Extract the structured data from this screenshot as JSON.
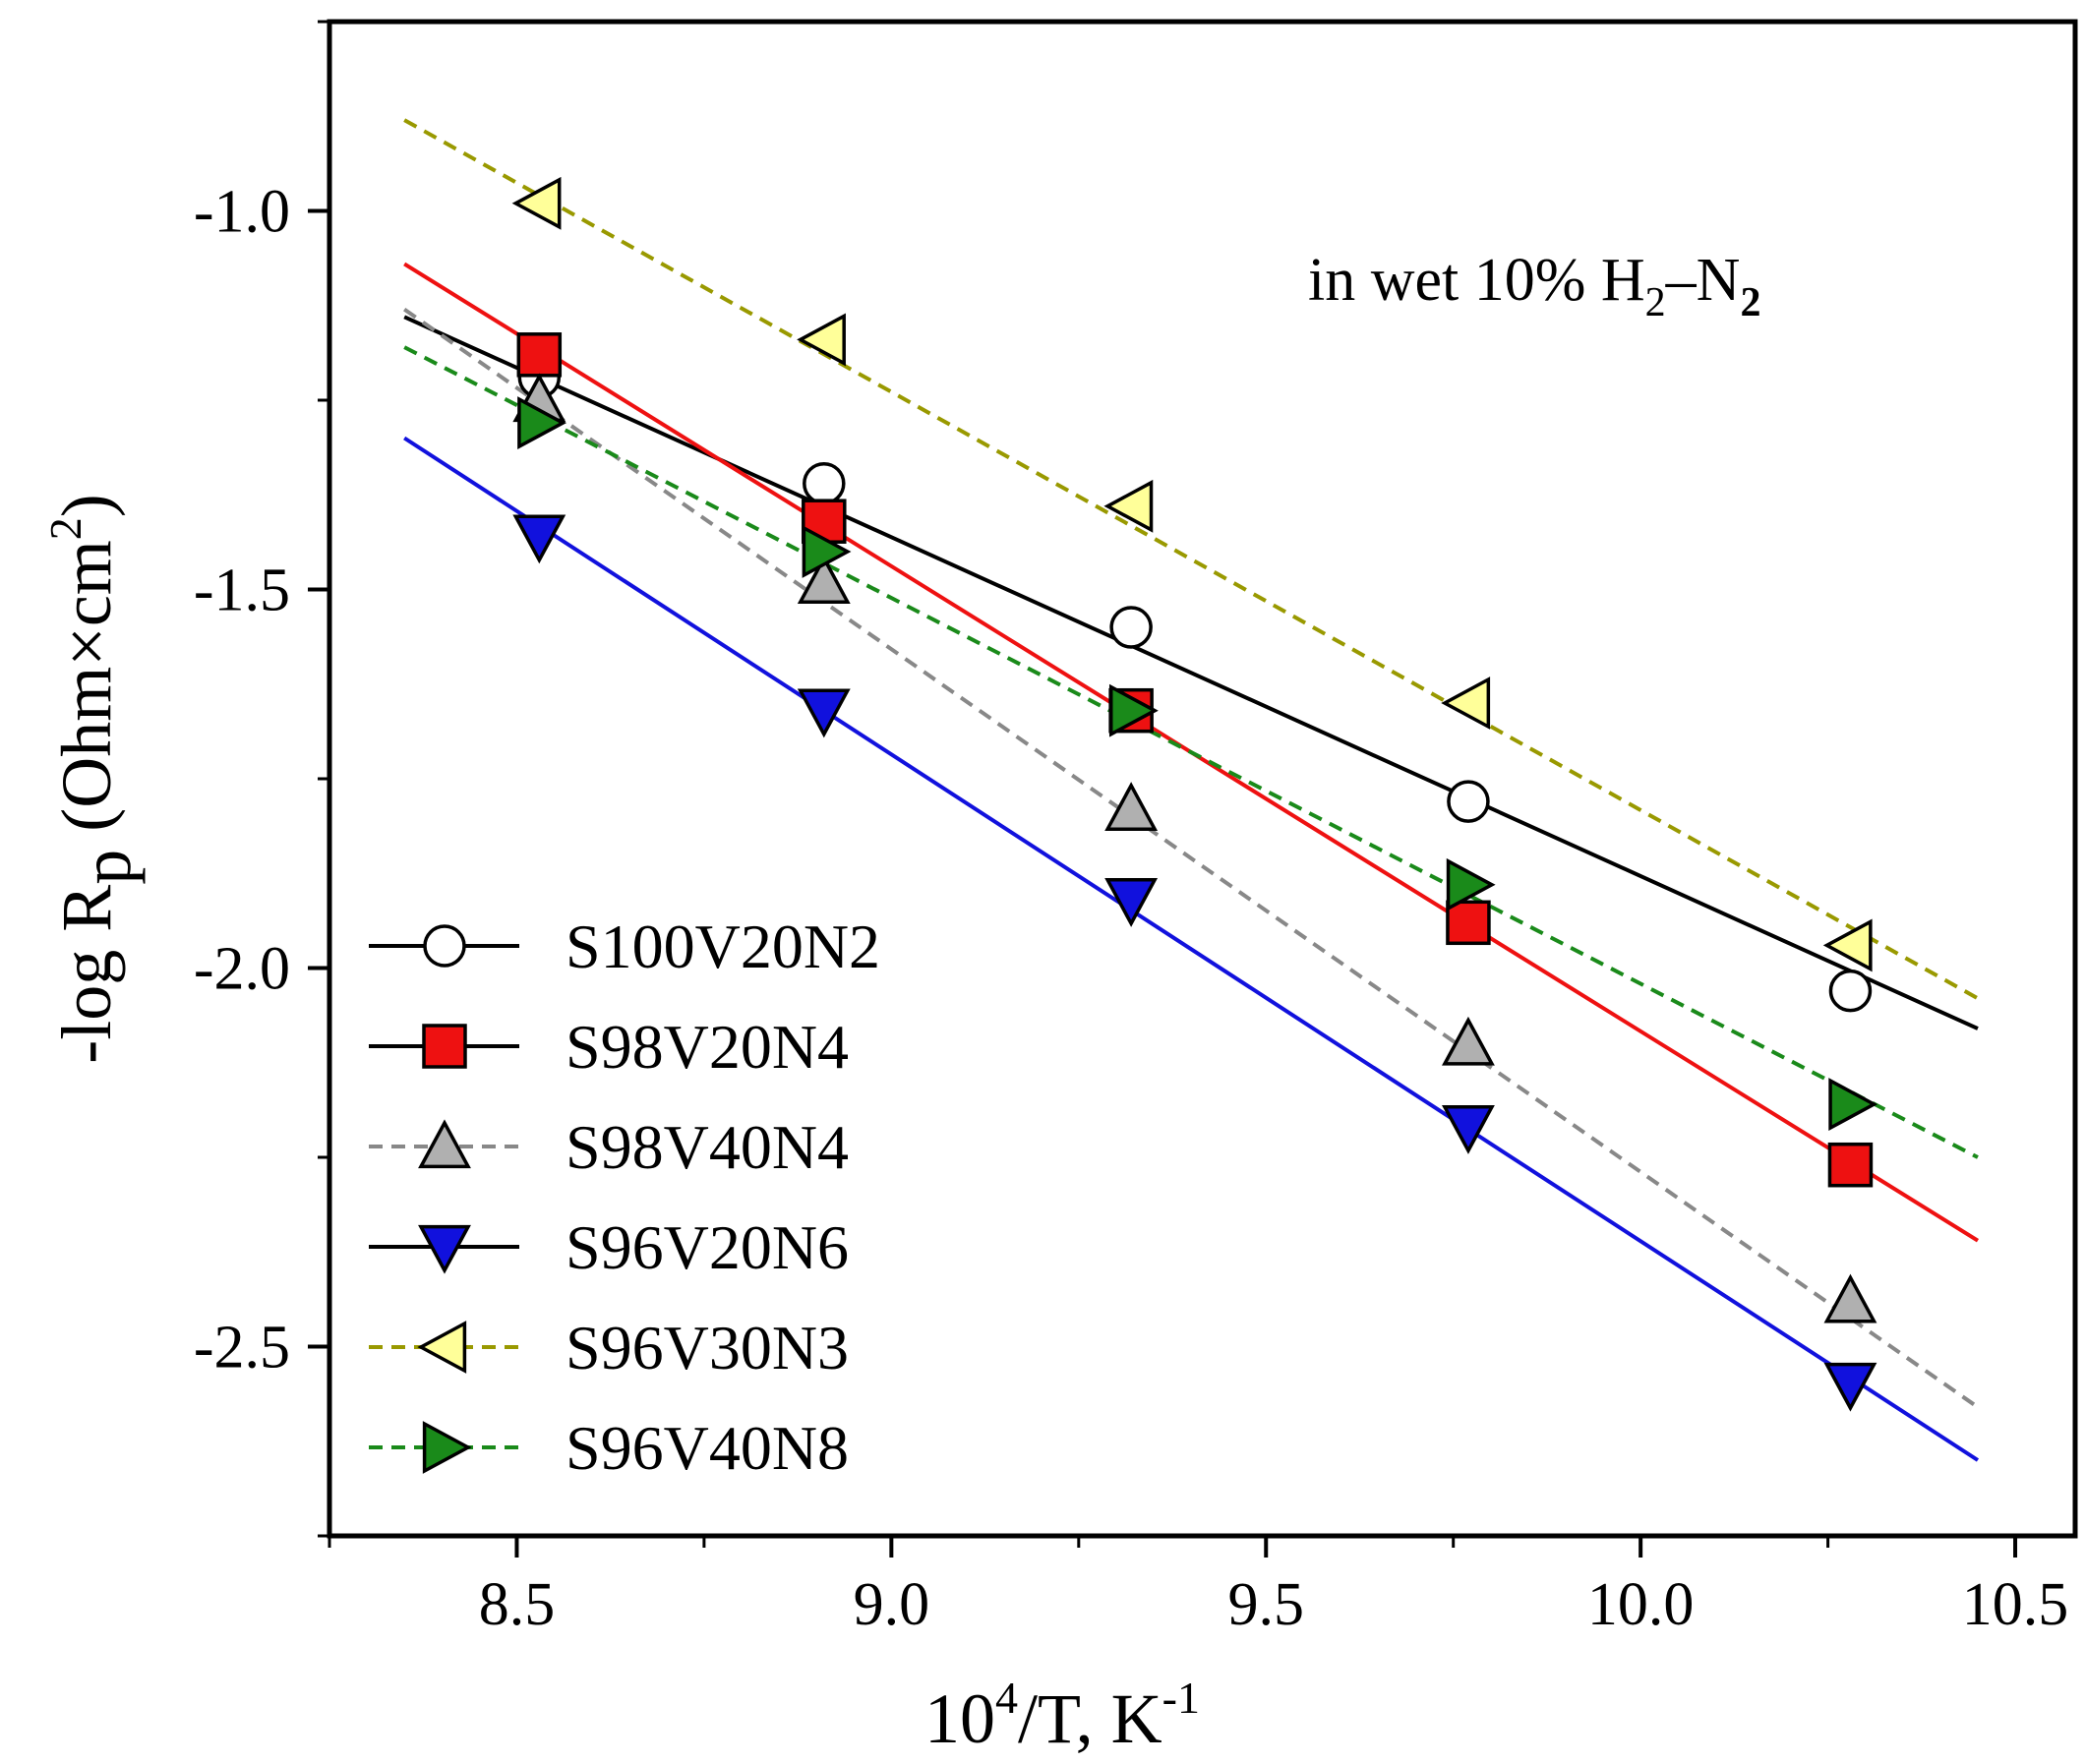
{
  "chart_data": {
    "type": "scatter",
    "title": "",
    "annotation": {
      "prefix": "in wet 10% H",
      "sub1": "2",
      "mid": "–N",
      "sub2": "2"
    },
    "xlabel": {
      "base": "10",
      "sup1": "4",
      "mid": "/T, K",
      "sup2": "-1"
    },
    "ylabel": {
      "main": "-log R",
      "sub": "p",
      "unit": " (Ohm×cm",
      "sup": "2",
      "close": ")"
    },
    "xlim": [
      8.25,
      10.58
    ],
    "ylim": [
      -2.75,
      -0.75
    ],
    "xticks": [
      8.5,
      9.0,
      9.5,
      10.0,
      10.5
    ],
    "xtick_labels": [
      "8.5",
      "9.0",
      "9.5",
      "10.0",
      "10.5"
    ],
    "yticks": [
      -1.0,
      -1.5,
      -2.0,
      -2.5
    ],
    "ytick_labels": [
      "-1.0",
      "-1.5",
      "-2.0",
      "-2.5"
    ],
    "legend_position": "bottom-left",
    "series": [
      {
        "name": "S100V20N2",
        "marker": "circle",
        "fill": "#ffffff",
        "line_color": "#000000",
        "dash": false,
        "x": [
          8.53,
          8.91,
          9.32,
          9.77,
          10.28
        ],
        "y": [
          -1.22,
          -1.36,
          -1.55,
          -1.78,
          -2.03
        ],
        "fit": {
          "x": [
            8.35,
            10.45
          ],
          "y": [
            -1.14,
            -2.08
          ]
        }
      },
      {
        "name": "S98V20N4",
        "marker": "square",
        "fill": "#ee1111",
        "line_color": "#ee1111",
        "legend_line_color": "#000000",
        "dash": false,
        "x": [
          8.53,
          8.91,
          9.32,
          9.77,
          10.28
        ],
        "y": [
          -1.19,
          -1.41,
          -1.66,
          -1.94,
          -2.26
        ],
        "fit": {
          "x": [
            8.35,
            10.45
          ],
          "y": [
            -1.07,
            -2.36
          ]
        }
      },
      {
        "name": "S98V40N4",
        "marker": "triangle-up",
        "fill": "#b0b0b0",
        "line_color": "#888888",
        "dash": true,
        "x": [
          8.53,
          8.91,
          9.32,
          9.77,
          10.28
        ],
        "y": [
          -1.25,
          -1.49,
          -1.79,
          -2.1,
          -2.44
        ],
        "fit": {
          "x": [
            8.35,
            10.45
          ],
          "y": [
            -1.13,
            -2.58
          ]
        }
      },
      {
        "name": "S96V20N6",
        "marker": "triangle-down",
        "fill": "#1111dd",
        "line_color": "#1111dd",
        "legend_line_color": "#000000",
        "dash": false,
        "x": [
          8.53,
          8.91,
          9.32,
          9.77,
          10.28
        ],
        "y": [
          -1.43,
          -1.66,
          -1.91,
          -2.21,
          -2.55
        ],
        "fit": {
          "x": [
            8.35,
            10.45
          ],
          "y": [
            -1.3,
            -2.65
          ]
        }
      },
      {
        "name": "S96V30N3",
        "marker": "triangle-left",
        "fill": "#ffff99",
        "line_color": "#999900",
        "dash": true,
        "x": [
          8.53,
          8.91,
          9.32,
          9.77,
          10.28
        ],
        "y": [
          -0.99,
          -1.17,
          -1.39,
          -1.65,
          -1.97
        ],
        "fit": {
          "x": [
            8.35,
            10.45
          ],
          "y": [
            -0.88,
            -2.04
          ]
        }
      },
      {
        "name": "S96V40N8",
        "marker": "triangle-right",
        "fill": "#1a8a1a",
        "line_color": "#1a8a1a",
        "dash": true,
        "x": [
          8.53,
          8.91,
          9.32,
          9.77,
          10.28
        ],
        "y": [
          -1.28,
          -1.45,
          -1.66,
          -1.89,
          -2.18
        ],
        "fit": {
          "x": [
            8.35,
            10.45
          ],
          "y": [
            -1.18,
            -2.25
          ]
        }
      }
    ]
  }
}
